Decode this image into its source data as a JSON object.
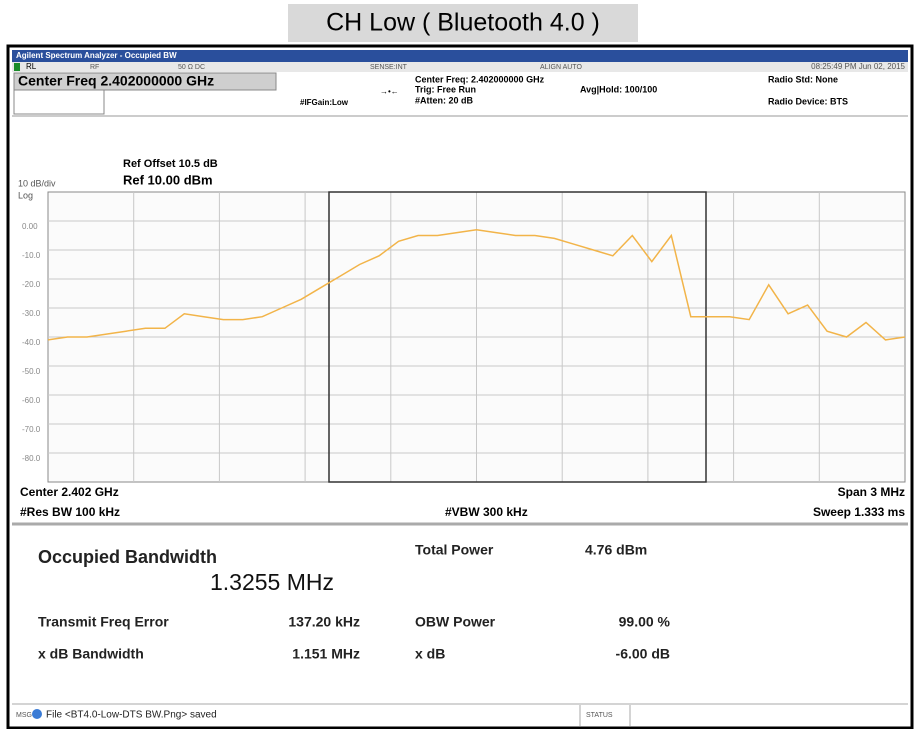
{
  "header": {
    "title": "CH Low ( Bluetooth 4.0 )"
  },
  "window": {
    "title": "Agilent Spectrum Analyzer - Occupied BW"
  },
  "status_row": {
    "rl": "RL",
    "rf": "RF",
    "coupling": "50 Ω  DC",
    "sense": "SENSE:INT",
    "align": "ALIGN AUTO",
    "datetime": "08:25:49 PM Jun 02, 2015"
  },
  "settings": {
    "center_freq": "Center Freq 2.402000000 GHz",
    "center_freq_info": "Center Freq: 2.402000000 GHz",
    "trig": "Trig: Free Run",
    "atten": "#Atten: 20 dB",
    "avg_hold": "Avg|Hold: 100/100",
    "if_gain": "#IFGain:Low",
    "radio_std": "Radio Std: None",
    "radio_device": "Radio Device: BTS"
  },
  "graph": {
    "ref_offset": "Ref Offset 10.5 dB",
    "ref_level": "Ref 10.00 dBm",
    "scale": "10 dB/div",
    "scale_type": "Log",
    "ylim": [
      -90,
      10
    ],
    "yticks": [
      {
        "value": 0,
        "label": "0.00"
      },
      {
        "value": -10,
        "label": "-10.0"
      },
      {
        "value": -20,
        "label": "-20.0"
      },
      {
        "value": -30,
        "label": "-30.0"
      },
      {
        "value": -40,
        "label": "-40.0"
      },
      {
        "value": -50,
        "label": "-50.0"
      },
      {
        "value": -60,
        "label": "-60.0"
      },
      {
        "value": -70,
        "label": "-70.0"
      },
      {
        "value": -80,
        "label": "-80.0"
      }
    ],
    "trace": {
      "color": "#f2b449",
      "values": [
        -41,
        -40,
        -40,
        -39,
        -38,
        -37,
        -37,
        -32,
        -33,
        -34,
        -34,
        -33,
        -30,
        -27,
        -23,
        -19,
        -15,
        -12,
        -7,
        -5,
        -5,
        -4,
        -3,
        -4,
        -5,
        -5,
        -6,
        -8,
        -10,
        -12,
        -5,
        -14,
        -5,
        -33,
        -33,
        -33,
        -34,
        -22,
        -32,
        -29,
        -38,
        -40,
        -35,
        -41,
        -40
      ]
    },
    "center": "Center  2.402 GHz",
    "res_bw": "#Res BW  100 kHz",
    "vbw": "#VBW  300 kHz",
    "span": "Span 3 MHz",
    "sweep": "Sweep  1.333 ms"
  },
  "results": {
    "occupied_bw_label": "Occupied Bandwidth",
    "occupied_bw_value": "1.3255 MHz",
    "total_power_label": "Total Power",
    "total_power_value": "4.76 dBm",
    "freq_error_label": "Transmit Freq Error",
    "freq_error_value": "137.20 kHz",
    "obw_power_label": "OBW Power",
    "obw_power_value": "99.00 %",
    "xdb_bw_label": "x dB Bandwidth",
    "xdb_bw_value": "1.151 MHz",
    "xdb_label": "x dB",
    "xdb_value": "-6.00 dB"
  },
  "footer": {
    "msg": "MSG",
    "message": "File <BT4.0-Low-DTS BW.Png> saved",
    "status": "STATUS"
  }
}
